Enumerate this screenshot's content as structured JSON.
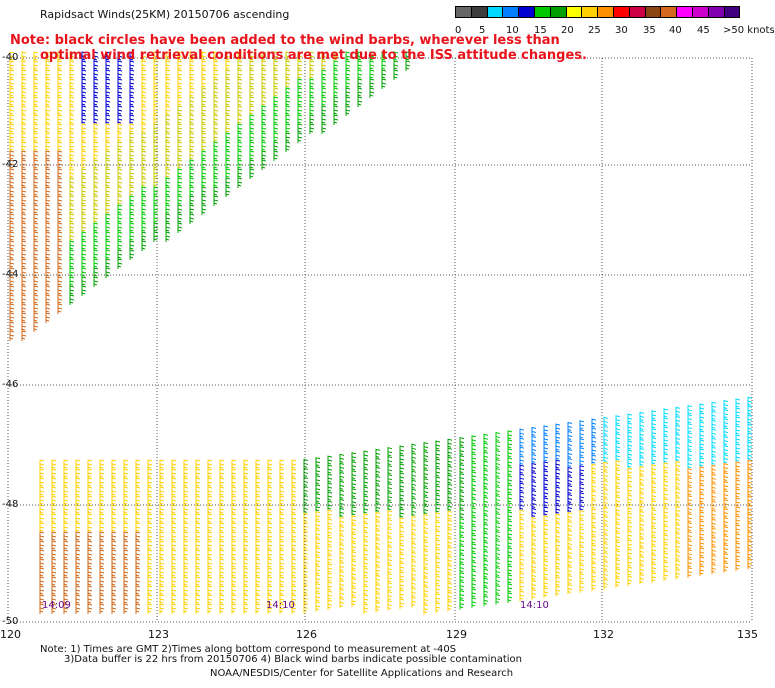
{
  "title": "Rapidsact Winds(25KM) 20150706 ascending",
  "note_line1": "Note: black circles have been added to the wind barbs, wherever less than",
  "note_line2": "optimal wind retrieval conditions are met due to the ISS attitude changes.",
  "legend": {
    "colors": [
      "#666666",
      "#3c3c3c",
      "#00d9ff",
      "#0080ff",
      "#0000d0",
      "#00c800",
      "#00a000",
      "#ffff00",
      "#ffd000",
      "#ff9000",
      "#ff0000",
      "#cc0044",
      "#8b4513",
      "#d2691e",
      "#ff00ff",
      "#cc00cc",
      "#8000b0",
      "#400080"
    ],
    "labels": [
      "0",
      "5",
      "10",
      "15",
      "20",
      "25",
      "30",
      "35",
      "40",
      "45",
      ">50 knots"
    ]
  },
  "axes": {
    "lat_labels": [
      "-40",
      "-42",
      "-44",
      "-46",
      "-48",
      "-50"
    ],
    "lon_labels": [
      "120",
      "123",
      "126",
      "129",
      "132",
      "135"
    ]
  },
  "time_labels": [
    "14:09",
    "14:10",
    "14:10"
  ],
  "footnote_line1": "Note: 1) Times are GMT 2)Times along bottom correspond to measurement at -40S",
  "footnote_line2": "3)Data buffer is 22 hrs from 20150706 4) Black wind barbs indicate possible contamination",
  "credit": "NOAA/NESDIS/Center for Satellite Applications and Research",
  "colors": {
    "grid": "#555555",
    "note": "#e8141c",
    "time_label": "#6a0a8a"
  }
}
